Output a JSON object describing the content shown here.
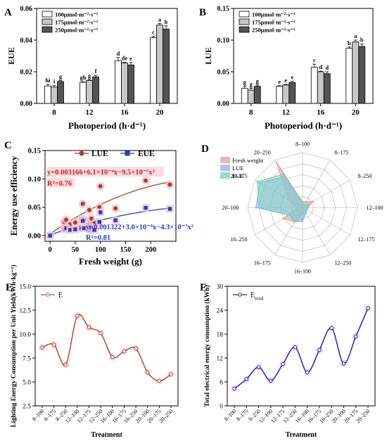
{
  "chart_data": [
    {
      "panel": "A",
      "type": "bar",
      "ylabel": "EUE",
      "xlabel": "Photoperiod (h·d⁻¹)",
      "categories": [
        "8",
        "12",
        "16",
        "20"
      ],
      "ylim": [
        0,
        0.06
      ],
      "yticks": [
        "0.00",
        "0.02",
        "0.04",
        "0.06"
      ],
      "series": [
        {
          "name": "100μmol·m⁻²·s⁻¹",
          "color": "#ffffff",
          "values": [
            0.011,
            0.0133,
            0.027,
            0.0415
          ],
          "errors": [
            0.001,
            0.0004,
            0.002,
            0.001
          ],
          "letters": [
            "hi",
            "gh",
            "d",
            "c"
          ]
        },
        {
          "name": "175μmol·m⁻²·s⁻¹",
          "color": "#c8c8c8",
          "values": [
            0.0103,
            0.0145,
            0.0255,
            0.0495
          ],
          "errors": [
            0.001,
            0.0005,
            0.0005,
            0.001
          ],
          "letters": [
            "i",
            "g",
            "de",
            "a"
          ]
        },
        {
          "name": "250μmol·m⁻²·s⁻¹",
          "color": "#545454",
          "values": [
            0.0138,
            0.0168,
            0.0243,
            0.047
          ],
          "errors": [
            0.0006,
            0.001,
            0.0015,
            0.002
          ],
          "letters": [
            "g",
            "f",
            "e",
            "b"
          ]
        }
      ]
    },
    {
      "panel": "B",
      "type": "bar",
      "ylabel": "LUE",
      "xlabel": "Photoperiod (h·d⁻¹)",
      "categories": [
        "8",
        "12",
        "16",
        "20"
      ],
      "ylim": [
        0,
        0.15
      ],
      "yticks": [
        "0.00",
        "0.05",
        "0.10",
        "0.15"
      ],
      "series": [
        {
          "name": "100μmol·m⁻²·s⁻¹",
          "color": "#ffffff",
          "values": [
            0.024,
            0.027,
            0.057,
            0.087
          ],
          "errors": [
            0.003,
            0.001,
            0.005,
            0.002
          ],
          "letters": [
            "g",
            "e",
            "c",
            "b"
          ]
        },
        {
          "name": "175μmol·m⁻²·s⁻¹",
          "color": "#c8c8c8",
          "values": [
            0.021,
            0.029,
            0.05,
            0.097
          ],
          "errors": [
            0.003,
            0.001,
            0.001,
            0.003
          ],
          "letters": [
            "g",
            "e",
            "d",
            "a"
          ]
        },
        {
          "name": "250μmol·m⁻²·s⁻¹",
          "color": "#545454",
          "values": [
            0.027,
            0.033,
            0.047,
            0.09
          ],
          "errors": [
            0.002,
            0.002,
            0.003,
            0.004
          ],
          "letters": [
            "g",
            "e",
            "d",
            "b"
          ]
        }
      ]
    },
    {
      "panel": "C",
      "type": "scatter",
      "ylabel": "Energy use efficiency",
      "xlabel": "Fresh weight (g)",
      "xlim": [
        -10,
        250
      ],
      "ylim": [
        -0.01,
        0.15
      ],
      "xticks": [
        0,
        50,
        100,
        150,
        200
      ],
      "yticks": [
        "0.00",
        "0.05",
        "0.10",
        "0.15"
      ],
      "series": [
        {
          "name": "LUE",
          "color": "#a0442a",
          "marker": "circle",
          "x": [
            0,
            28,
            32,
            40,
            50,
            62,
            65,
            68,
            78,
            80,
            82,
            88,
            98,
            100,
            130,
            190,
            238
          ],
          "y": [
            0.0,
            0.024,
            0.028,
            0.02,
            0.023,
            0.029,
            0.056,
            0.028,
            0.045,
            0.022,
            0.03,
            0.021,
            0.05,
            0.087,
            0.048,
            0.097,
            0.09
          ],
          "fit_label": "y=0.003166+6.1×10⁻⁴x−9.5×10⁻⁷x²",
          "r2_label": "R²=0.76",
          "fit": [
            0.003166,
            0.00061,
            -9.5e-07
          ]
        },
        {
          "name": "EUE",
          "color": "#1f3fd0",
          "marker": "square",
          "x": [
            0,
            28,
            32,
            40,
            50,
            62,
            65,
            68,
            78,
            80,
            82,
            88,
            98,
            100,
            130,
            190,
            238
          ],
          "y": [
            0.0,
            0.011,
            0.013,
            0.01,
            0.011,
            0.013,
            0.026,
            0.013,
            0.017,
            0.01,
            0.014,
            0.01,
            0.024,
            0.041,
            0.027,
            0.049,
            0.047
          ],
          "fit_label": "y=0.001322+3.0×10⁻⁴x−4.3×10⁻⁷x²",
          "r2_label": "R²=0.81",
          "fit": [
            0.001322,
            0.0003,
            -4.3e-07
          ]
        }
      ]
    },
    {
      "panel": "D",
      "type": "radar",
      "axes": [
        "8–100",
        "8–175",
        "8–250",
        "12–100",
        "12–175",
        "12–250",
        "16–100",
        "16–175",
        "16–250",
        "20–100",
        "20–175",
        "20–250"
      ],
      "series": [
        {
          "name": "Fresh weight",
          "color": "#e8a0a0",
          "values": [
            0.1,
            0.12,
            0.22,
            0.1,
            0.09,
            0.12,
            0.12,
            0.3,
            0.4,
            0.1,
            0.3,
            0.95
          ]
        },
        {
          "name": "LUE",
          "color": "#9ab6e8",
          "values": [
            0.1,
            0.05,
            0.12,
            0.1,
            0.08,
            0.12,
            0.25,
            0.3,
            0.28,
            0.85,
            0.9,
            0.65
          ]
        },
        {
          "name": "EUE",
          "color": "#80cfc0",
          "values": [
            0.1,
            0.05,
            0.12,
            0.1,
            0.08,
            0.12,
            0.22,
            0.3,
            0.28,
            0.8,
            0.95,
            0.7
          ]
        }
      ]
    },
    {
      "panel": "E",
      "type": "line",
      "ylabel": "Lighting Energy Consumption per Unit Yield(kWh·kg⁻¹)",
      "xlabel": "Treatment",
      "ylim": [
        2.5,
        15
      ],
      "yticks": [
        "2.5",
        "5.0",
        "7.5",
        "10.0",
        "12.5",
        "15.0"
      ],
      "categories": [
        "8–100",
        "8–175",
        "8–250",
        "12–100",
        "12–175",
        "12–250",
        "16–100",
        "16–175",
        "16–250",
        "20–100",
        "20–175",
        "20–250"
      ],
      "series": [
        {
          "name": "E",
          "color": "#b05030",
          "values": [
            8.6,
            8.9,
            6.8,
            11.9,
            10.7,
            10.1,
            7.6,
            8.2,
            8.5,
            6.0,
            5.1,
            5.8
          ]
        }
      ]
    },
    {
      "panel": "F",
      "type": "line",
      "ylabel": "Total electrical energy consumption (kWh)",
      "xlabel": "Treatment",
      "ylim": [
        0,
        30
      ],
      "yticks": [
        "0",
        "6",
        "12",
        "18",
        "24",
        "30"
      ],
      "categories": [
        "8–100",
        "8–175",
        "8–250",
        "12–100",
        "12–175",
        "12–250",
        "16–100",
        "16–175",
        "16–250",
        "20–100",
        "20–175",
        "20–250"
      ],
      "series": [
        {
          "name": "E_total",
          "color": "#2020c8",
          "values": [
            4.3,
            6.7,
            9.7,
            6.3,
            10.5,
            14.7,
            8.4,
            14.0,
            19.5,
            10.6,
            17.4,
            24.5
          ]
        }
      ]
    }
  ],
  "panel_letters": {
    "A": "A",
    "B": "B",
    "C": "C",
    "D": "D",
    "E": "E",
    "F": "F"
  },
  "legend_F_main": "E",
  "legend_F_sub": "total"
}
